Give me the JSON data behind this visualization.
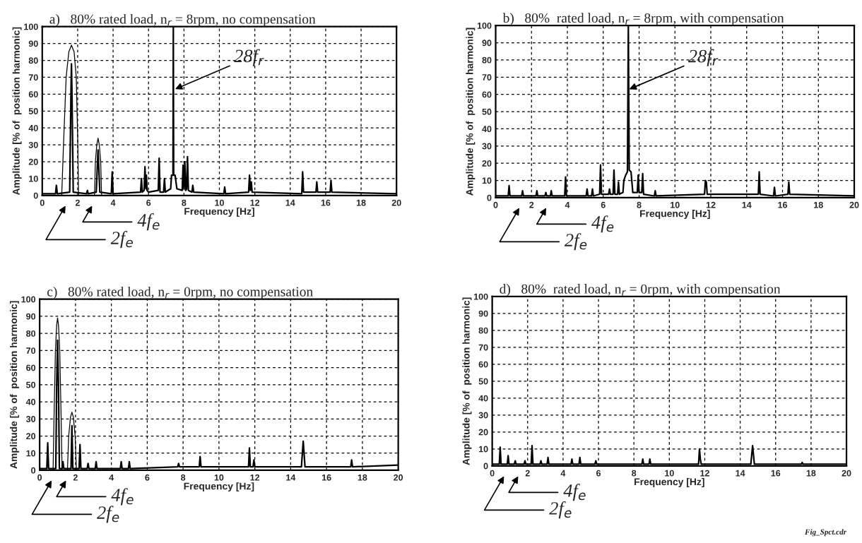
{
  "chart_data": [
    {
      "type": "line",
      "title": "a)   80% rated load, n$_{r}$ = 8rpm, no compensation",
      "xlabel": "Frequency [Hz]",
      "ylabel": "Amplitude [% of  position harmonic]",
      "xlim": [
        0,
        20
      ],
      "ylim": [
        0,
        100
      ],
      "xticks": [
        0,
        2,
        4,
        6,
        8,
        10,
        12,
        14,
        16,
        18,
        20
      ],
      "yticks": [
        0,
        10,
        20,
        30,
        40,
        50,
        60,
        70,
        80,
        90,
        100
      ],
      "grid": true,
      "annotations": [
        {
          "text": "28f$_{r}$",
          "x": 7.5,
          "y": 63
        },
        {
          "text": "4f$_{e}$",
          "x": 3.15,
          "y": 0
        },
        {
          "text": "2f$_{e}$",
          "x": 1.65,
          "y": 0
        }
      ],
      "series": [
        {
          "color": "#000000",
          "x": [
            0,
            0.75,
            0.8,
            0.85,
            1.55,
            1.62,
            1.65,
            1.68,
            1.75,
            2.5,
            2.55,
            2.6,
            3.05,
            3.12,
            3.15,
            3.18,
            3.25,
            3.9,
            3.95,
            4.0,
            5.55,
            5.6,
            5.65,
            5.75,
            5.8,
            5.85,
            5.88,
            5.92,
            6.0,
            6.55,
            6.6,
            6.65,
            6.85,
            6.9,
            6.95,
            7.25,
            7.3,
            7.38,
            7.4,
            7.42,
            7.5,
            7.6,
            7.9,
            7.95,
            8.0,
            8.05,
            8.1,
            8.15,
            8.2,
            8.25,
            8.45,
            8.5,
            8.55,
            10.25,
            10.3,
            10.35,
            11.65,
            11.7,
            11.75,
            11.8,
            11.85,
            14.65,
            14.7,
            14.75,
            15.45,
            15.5,
            15.55,
            16.25,
            16.3,
            16.35,
            20
          ],
          "values": [
            1,
            1,
            6,
            1,
            2,
            60,
            78,
            60,
            2,
            1,
            3,
            1,
            2,
            20,
            27,
            20,
            2,
            1,
            14,
            1,
            2,
            10,
            2,
            3,
            17,
            4,
            12,
            3,
            2,
            3,
            22,
            2,
            2,
            10,
            2,
            4,
            12,
            12,
            100,
            12,
            12,
            4,
            3,
            18,
            4,
            20,
            3,
            4,
            23,
            3,
            2,
            6,
            2,
            1,
            5,
            1,
            2,
            12,
            3,
            8,
            2,
            1,
            14,
            2,
            2,
            8,
            2,
            2,
            9,
            2,
            1
          ]
        },
        {
          "color": "#000000",
          "x": [
            1.1,
            1.2,
            1.35,
            1.5,
            1.65,
            1.8,
            1.92,
            2.0,
            2.05,
            2.5,
            2.95,
            3.0,
            3.08,
            3.15,
            3.22,
            3.3,
            3.35
          ],
          "values": [
            0,
            30,
            70,
            85,
            89,
            85,
            70,
            35,
            0,
            null,
            0,
            20,
            30,
            34,
            30,
            20,
            0
          ]
        }
      ]
    },
    {
      "type": "line",
      "title": "b)   80%  rated load, n$_{r}$ = 8rpm, with compensation",
      "xlabel": "Frequency [Hz]",
      "ylabel": "Amplitude [% of  position harmonic]",
      "xlim": [
        0,
        20
      ],
      "ylim": [
        0,
        100
      ],
      "xticks": [
        0,
        2,
        4,
        6,
        8,
        10,
        12,
        14,
        16,
        18,
        20
      ],
      "yticks": [
        0,
        10,
        20,
        30,
        40,
        50,
        60,
        70,
        80,
        90,
        100
      ],
      "grid": true,
      "annotations": [
        {
          "text": "28f$_{r}$",
          "x": 7.45,
          "y": 63
        },
        {
          "text": "4f$_{e}$",
          "x": 3.15,
          "y": 0
        },
        {
          "text": "2f$_{e}$",
          "x": 1.65,
          "y": 0
        }
      ],
      "series": [
        {
          "color": "#000000",
          "x": [
            0,
            0.7,
            0.75,
            0.8,
            1.45,
            1.5,
            1.55,
            2.25,
            2.3,
            2.35,
            2.75,
            2.8,
            2.85,
            3.05,
            3.1,
            3.15,
            3.85,
            3.9,
            3.95,
            5.05,
            5.1,
            5.15,
            5.35,
            5.4,
            5.45,
            5.8,
            5.85,
            5.9,
            6.3,
            6.35,
            6.4,
            6.55,
            6.6,
            6.65,
            6.8,
            6.85,
            6.9,
            7.1,
            7.15,
            7.25,
            7.35,
            7.4,
            7.45,
            7.55,
            7.65,
            7.9,
            7.95,
            8.0,
            8.15,
            8.2,
            8.25,
            8.85,
            8.9,
            8.95,
            11.65,
            11.7,
            11.75,
            11.8,
            14.65,
            14.7,
            14.75,
            15.5,
            15.55,
            15.6,
            16.3,
            16.35,
            16.4,
            20
          ],
          "values": [
            1,
            1,
            7,
            1,
            1,
            4,
            1,
            1,
            4,
            1,
            1,
            3,
            1,
            1,
            4,
            1,
            1,
            12,
            1,
            1,
            5,
            1,
            1,
            5,
            1,
            2,
            19,
            2,
            2,
            5,
            2,
            2,
            16,
            2,
            2,
            9,
            2,
            3,
            10,
            13,
            15,
            100,
            16,
            15,
            3,
            3,
            13,
            3,
            3,
            14,
            2,
            1,
            4,
            1,
            2,
            10,
            9,
            2,
            2,
            15,
            2,
            1,
            6,
            1,
            2,
            9,
            2,
            1
          ]
        }
      ]
    },
    {
      "type": "line",
      "title": "c)   80% rated load, n$_{r}$ = 0rpm, no compensation",
      "xlabel": "Frequency [Hz]",
      "ylabel": "Amplitude [% of  position harmonic]",
      "xlim": [
        0,
        20
      ],
      "ylim": [
        0,
        100
      ],
      "xticks": [
        0,
        2,
        4,
        6,
        8,
        10,
        12,
        14,
        16,
        18,
        20
      ],
      "yticks": [
        0,
        10,
        20,
        30,
        40,
        50,
        60,
        70,
        80,
        90,
        100
      ],
      "grid": true,
      "annotations": [
        {
          "text": "4f$_{e}$",
          "x": 1.8,
          "y": 0
        },
        {
          "text": "2f$_{e}$",
          "x": 1.0,
          "y": 0
        }
      ],
      "series": [
        {
          "color": "#000000",
          "x": [
            0,
            0.4,
            0.45,
            0.5,
            0.9,
            0.95,
            1.0,
            1.05,
            1.1,
            1.25,
            1.3,
            1.35,
            1.75,
            1.8,
            1.85,
            2.2,
            2.25,
            2.3,
            2.65,
            2.7,
            2.75,
            3.1,
            3.15,
            3.2,
            4.5,
            4.55,
            4.6,
            4.95,
            5.0,
            5.05,
            7.7,
            7.75,
            7.8,
            8.9,
            8.95,
            9.0,
            11.65,
            11.7,
            11.75,
            11.9,
            11.95,
            12.0,
            14.6,
            14.7,
            14.8,
            17.35,
            17.4,
            17.45,
            20
          ],
          "values": [
            1,
            1,
            16,
            1,
            1,
            50,
            76,
            50,
            1,
            1,
            5,
            1,
            1,
            26,
            1,
            1,
            15,
            1,
            1,
            4,
            1,
            1,
            5,
            1,
            1,
            5,
            1,
            1,
            5,
            1,
            2,
            4,
            2,
            2,
            8,
            2,
            2,
            13,
            2,
            2,
            6,
            2,
            2,
            17,
            2,
            2,
            6,
            2,
            3
          ]
        },
        {
          "color": "#000000",
          "x": [
            0.75,
            0.8,
            0.88,
            0.95,
            1.0,
            1.05,
            1.12,
            1.2,
            1.25,
            1.4,
            1.55,
            1.62,
            1.72,
            1.8,
            1.88,
            1.98,
            2.05
          ],
          "values": [
            0,
            30,
            70,
            85,
            89,
            85,
            70,
            30,
            0,
            null,
            0,
            20,
            31,
            34,
            31,
            20,
            0
          ]
        }
      ]
    },
    {
      "type": "line",
      "title": "d)   80%  rated load, n$_{r}$ = 0rpm, with compensation",
      "xlabel": "Frequency [Hz]",
      "ylabel": "Amplitude [% of  position harmonic]",
      "xlim": [
        0,
        20
      ],
      "ylim": [
        0,
        100
      ],
      "xticks": [
        0,
        2,
        4,
        6,
        8,
        10,
        12,
        14,
        16,
        18,
        20
      ],
      "yticks": [
        0,
        10,
        20,
        30,
        40,
        50,
        60,
        70,
        80,
        90,
        100
      ],
      "grid": true,
      "annotations": [
        {
          "text": "4f$_{e}$",
          "x": 1.8,
          "y": 0
        },
        {
          "text": "2f$_{e}$",
          "x": 1.0,
          "y": 0
        },
        "Fig_Spct.cdr"
      ],
      "series": [
        {
          "color": "#000000",
          "x": [
            0,
            0.4,
            0.45,
            0.5,
            0.85,
            0.9,
            0.95,
            1.25,
            1.3,
            1.35,
            1.8,
            1.85,
            1.9,
            2.2,
            2.25,
            2.3,
            2.7,
            2.75,
            2.8,
            3.1,
            3.15,
            3.2,
            4.45,
            4.5,
            4.55,
            4.9,
            4.95,
            5.0,
            5.8,
            5.85,
            5.9,
            8.45,
            8.5,
            8.55,
            8.85,
            8.9,
            8.95,
            11.65,
            11.7,
            11.75,
            11.8,
            14.6,
            14.7,
            14.8,
            17.45,
            17.5,
            17.55,
            20
          ],
          "values": [
            1,
            1,
            11,
            1,
            1,
            6,
            1,
            1,
            3,
            1,
            1,
            3,
            1,
            1,
            12,
            1,
            1,
            3,
            1,
            1,
            5,
            1,
            1,
            4,
            1,
            1,
            5,
            1,
            1,
            3,
            1,
            1,
            4,
            1,
            1,
            4,
            1,
            1,
            10,
            4,
            1,
            1,
            12,
            1,
            1,
            2,
            1,
            1
          ]
        }
      ]
    }
  ]
}
